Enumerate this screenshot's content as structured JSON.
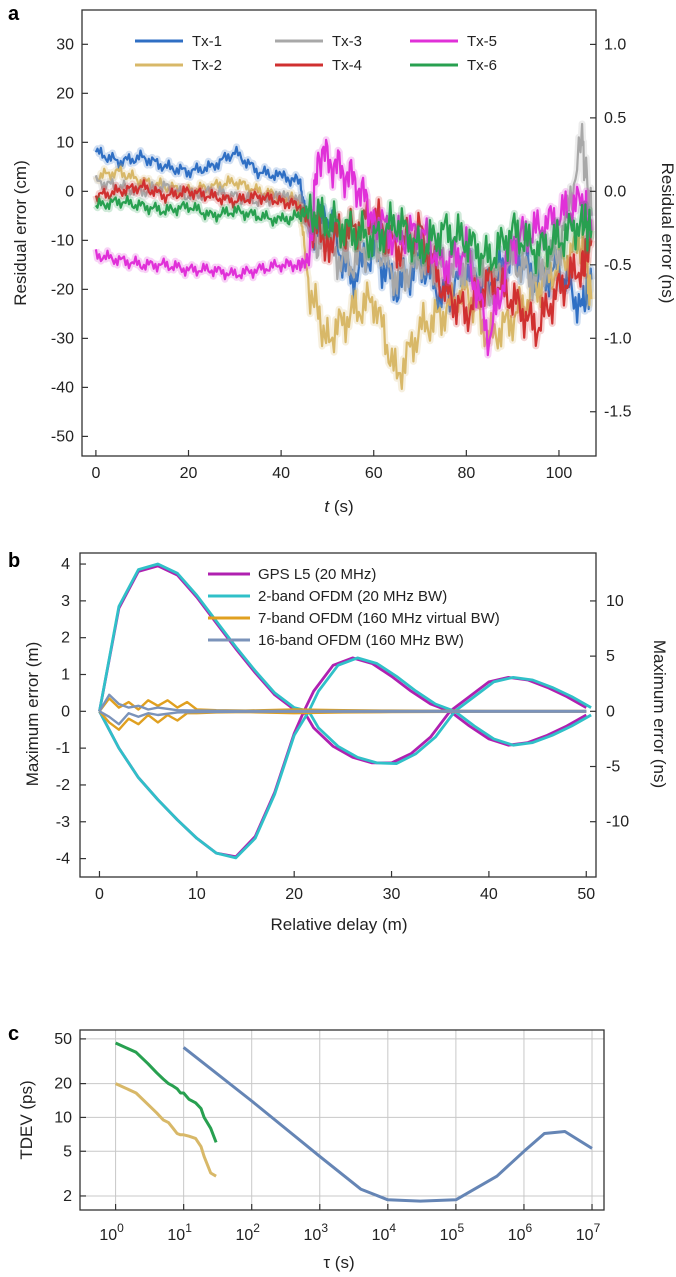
{
  "chart_data": [
    {
      "panel": "a",
      "type": "line",
      "xlabel_italic": "t",
      "xlabel_unit": " (s)",
      "ylabel": "Residual error (cm)",
      "ylabel_right": "Residual error (ns)",
      "xlim": [
        -3,
        108
      ],
      "ylim": [
        -54,
        37
      ],
      "xticks": [
        0,
        20,
        40,
        60,
        80,
        100
      ],
      "yticks": [
        30,
        20,
        10,
        0,
        -10,
        -20,
        -30,
        -40,
        -50
      ],
      "yticks_right": [
        "1.0",
        "0.5",
        "0.0",
        "-0.5",
        "-1.0",
        "-1.5"
      ],
      "yticks_right_values_ns": [
        1.0,
        0.5,
        0.0,
        -0.5,
        -1.0,
        -1.5
      ],
      "legend_position": "top",
      "series": [
        {
          "name": "Tx-1",
          "color": "#2f6fc4",
          "x": [
            0,
            5,
            10,
            15,
            20,
            25,
            30,
            35,
            40,
            44,
            46,
            50,
            55,
            60,
            65,
            70,
            75,
            80,
            85,
            90,
            95,
            100,
            105,
            107
          ],
          "y": [
            8,
            6,
            7,
            5,
            4,
            5,
            8,
            4,
            3,
            2,
            -8,
            -5,
            -18,
            -12,
            -20,
            -14,
            -22,
            -16,
            -20,
            -12,
            -18,
            -16,
            -24,
            -18
          ]
        },
        {
          "name": "Tx-2",
          "color": "#d8b868",
          "x": [
            0,
            5,
            10,
            15,
            20,
            25,
            30,
            35,
            40,
            44,
            46,
            50,
            55,
            60,
            65,
            70,
            75,
            80,
            85,
            90,
            95,
            100,
            105,
            107
          ],
          "y": [
            3,
            4,
            2,
            1,
            0,
            1,
            2,
            0,
            -1,
            -2,
            -20,
            -30,
            -25,
            -22,
            -38,
            -28,
            -25,
            -20,
            -30,
            -26,
            -20,
            -15,
            -10,
            -22
          ]
        },
        {
          "name": "Tx-3",
          "color": "#a8a8a8",
          "x": [
            0,
            5,
            10,
            15,
            20,
            25,
            30,
            35,
            40,
            44,
            46,
            50,
            55,
            60,
            65,
            70,
            75,
            80,
            85,
            90,
            95,
            100,
            105,
            107
          ],
          "y": [
            2,
            1,
            0,
            1,
            -1,
            0,
            -1,
            -2,
            -1,
            -2,
            -8,
            -12,
            -15,
            -10,
            -18,
            -14,
            -16,
            -15,
            -20,
            -14,
            -18,
            -12,
            10,
            -5
          ]
        },
        {
          "name": "Tx-4",
          "color": "#d03030",
          "x": [
            0,
            5,
            10,
            15,
            20,
            25,
            30,
            35,
            40,
            44,
            46,
            50,
            55,
            60,
            65,
            70,
            75,
            80,
            85,
            90,
            95,
            100,
            105,
            107
          ],
          "y": [
            -1,
            0,
            1,
            -1,
            0,
            -1,
            -2,
            -1,
            -2,
            -3,
            -6,
            -10,
            -8,
            -5,
            -12,
            -8,
            -20,
            -25,
            -18,
            -22,
            -28,
            -20,
            -15,
            -10
          ]
        },
        {
          "name": "Tx-5",
          "color": "#e030d8",
          "x": [
            0,
            5,
            10,
            15,
            20,
            25,
            30,
            35,
            40,
            44,
            46,
            48,
            52,
            56,
            60,
            65,
            70,
            75,
            80,
            85,
            90,
            95,
            100,
            105,
            107
          ],
          "y": [
            -13,
            -14,
            -15,
            -15,
            -16,
            -16,
            -17,
            -16,
            -15,
            -15,
            -14,
            8,
            5,
            2,
            -5,
            -10,
            -8,
            -15,
            -12,
            -30,
            -10,
            -8,
            -5,
            -2,
            -8
          ]
        },
        {
          "name": "Tx-6",
          "color": "#28a050",
          "x": [
            0,
            5,
            10,
            15,
            20,
            25,
            30,
            35,
            40,
            44,
            46,
            50,
            55,
            60,
            65,
            70,
            75,
            80,
            85,
            90,
            95,
            100,
            105,
            107
          ],
          "y": [
            -3,
            -2,
            -3,
            -4,
            -3,
            -5,
            -4,
            -5,
            -6,
            -5,
            -4,
            -6,
            -8,
            -10,
            -6,
            -12,
            -8,
            -10,
            -14,
            -8,
            -12,
            -10,
            -6,
            -8
          ]
        }
      ]
    },
    {
      "panel": "b",
      "type": "line",
      "xlabel": "Relative delay (m)",
      "ylabel": "Maximum  error (m)",
      "ylabel_right": "Maximum  error (ns)",
      "xlim": [
        -2,
        51
      ],
      "ylim": [
        -4.5,
        4.3
      ],
      "xticks": [
        0,
        10,
        20,
        30,
        40,
        50
      ],
      "yticks": [
        4,
        3,
        2,
        1,
        0,
        -1,
        -2,
        -3,
        -4
      ],
      "yticks_right": [
        "10",
        "5",
        "0",
        "-5",
        "-10"
      ],
      "yticks_right_values_ns": [
        10,
        5,
        0,
        -5,
        -10
      ],
      "legend_position": "top-right",
      "series": [
        {
          "name": "GPS L5 (20 MHz)",
          "color": "#b020b0",
          "x": [
            0,
            2,
            4,
            6,
            8,
            10,
            12,
            14,
            16,
            18,
            20,
            21,
            22,
            24,
            26,
            28,
            30,
            32,
            34,
            36,
            38,
            40,
            42,
            44,
            46,
            48,
            50
          ],
          "upper": [
            0,
            2.8,
            3.8,
            3.95,
            3.7,
            3.1,
            2.4,
            1.7,
            1.05,
            0.45,
            0.05,
            0,
            0.55,
            1.25,
            1.45,
            1.3,
            0.95,
            0.55,
            0.2,
            0,
            0.4,
            0.8,
            0.92,
            0.85,
            0.65,
            0.4,
            0.1
          ],
          "lower": [
            0,
            -1.0,
            -1.8,
            -2.4,
            -2.95,
            -3.45,
            -3.85,
            -3.95,
            -3.4,
            -2.2,
            -0.6,
            0,
            -0.45,
            -0.95,
            -1.25,
            -1.4,
            -1.4,
            -1.15,
            -0.7,
            0,
            -0.4,
            -0.75,
            -0.92,
            -0.85,
            -0.65,
            -0.4,
            -0.1
          ]
        },
        {
          "name": "2-band OFDM (20 MHz BW)",
          "color": "#30c0c8",
          "x": [
            0,
            2,
            4,
            6,
            8,
            10,
            12,
            14,
            16,
            18,
            20,
            21.5,
            22.5,
            24.5,
            26.5,
            28.5,
            30.5,
            32.5,
            34.5,
            36.5,
            38.5,
            40.5,
            42.5,
            44.5,
            46.5,
            48.5,
            50.5
          ],
          "upper": [
            0,
            2.85,
            3.85,
            4.0,
            3.75,
            3.15,
            2.45,
            1.75,
            1.1,
            0.5,
            0.1,
            0,
            0.55,
            1.25,
            1.45,
            1.3,
            0.95,
            0.55,
            0.2,
            0,
            0.4,
            0.8,
            0.92,
            0.85,
            0.65,
            0.4,
            0.1
          ],
          "lower": [
            0,
            -1.0,
            -1.8,
            -2.4,
            -2.95,
            -3.45,
            -3.85,
            -3.98,
            -3.45,
            -2.25,
            -0.65,
            0,
            -0.45,
            -0.95,
            -1.25,
            -1.4,
            -1.42,
            -1.15,
            -0.7,
            0,
            -0.4,
            -0.75,
            -0.92,
            -0.85,
            -0.65,
            -0.4,
            -0.1
          ]
        },
        {
          "name": "7-band OFDM (160 MHz virtual BW)",
          "color": "#e0a020",
          "x": [
            0,
            1,
            2,
            3,
            4,
            5,
            6,
            7,
            8,
            9,
            10,
            12,
            15,
            20,
            25,
            30,
            40,
            50
          ],
          "upper": [
            0,
            0.35,
            0.1,
            0.25,
            0.05,
            0.3,
            0.15,
            0.3,
            0.1,
            0.25,
            0.05,
            0.03,
            0.02,
            0.05,
            0.03,
            0.02,
            0.01,
            0.01
          ],
          "lower": [
            0,
            -0.3,
            -0.5,
            -0.2,
            -0.35,
            -0.1,
            -0.3,
            -0.1,
            -0.25,
            -0.05,
            -0.05,
            -0.03,
            -0.02,
            -0.05,
            -0.03,
            -0.02,
            -0.01,
            -0.01
          ]
        },
        {
          "name": "16-band OFDM (160 MHz BW)",
          "color": "#7b93ba",
          "x": [
            0,
            1,
            2,
            3,
            4,
            5,
            6,
            8,
            10,
            15,
            20,
            30,
            50
          ],
          "upper": [
            0,
            0.45,
            0.2,
            0.1,
            0.15,
            0.05,
            0.1,
            0.03,
            0.02,
            0.01,
            0.01,
            0.01,
            0.01
          ],
          "lower": [
            0,
            -0.15,
            -0.35,
            -0.05,
            -0.15,
            -0.05,
            -0.1,
            -0.03,
            -0.02,
            -0.01,
            -0.01,
            -0.01,
            -0.01
          ]
        }
      ]
    },
    {
      "panel": "c",
      "type": "line",
      "xscale": "log",
      "yscale": "log",
      "xlabel": "τ (s)",
      "ylabel": "TDEV (ps)",
      "xlim": [
        0.3,
        15000000
      ],
      "ylim": [
        1.5,
        60
      ],
      "xtick_exponents": [
        "0",
        "1",
        "2",
        "3",
        "4",
        "5",
        "6",
        "7"
      ],
      "xtick_base": "10",
      "yticks": [
        50,
        20,
        10,
        5,
        2
      ],
      "yticks_labels": [
        "50",
        "20",
        "10",
        "5",
        "2"
      ],
      "grid": true,
      "series": [
        {
          "color": "#28a050",
          "x": [
            1,
            2,
            3,
            4,
            5,
            6,
            7,
            8,
            9,
            10,
            12,
            15,
            18,
            20,
            25,
            30
          ],
          "y": [
            46,
            38,
            30,
            25,
            22,
            20,
            19,
            18,
            16.5,
            16.5,
            14.5,
            13.5,
            12,
            10,
            8,
            6
          ]
        },
        {
          "color": "#d8b868",
          "x": [
            1,
            2,
            3,
            4,
            5,
            6,
            7,
            8,
            9,
            10,
            12,
            15,
            18,
            20,
            25,
            30
          ],
          "y": [
            20,
            16.5,
            13,
            11,
            9.5,
            9,
            8,
            7.2,
            7,
            7,
            6.8,
            6.5,
            5.5,
            4.5,
            3.2,
            3
          ]
        },
        {
          "color": "#6585b5",
          "x": [
            10,
            100,
            1000,
            4000,
            10000,
            30000,
            100000,
            400000,
            1000000,
            2000000,
            4000000,
            10000000
          ],
          "y": [
            42,
            14,
            4.5,
            2.3,
            1.85,
            1.8,
            1.85,
            3,
            5,
            7.2,
            7.5,
            5.3
          ]
        }
      ]
    }
  ],
  "panels": {
    "a": {
      "letter": "a"
    },
    "b": {
      "letter": "b"
    },
    "c": {
      "letter": "c"
    }
  }
}
